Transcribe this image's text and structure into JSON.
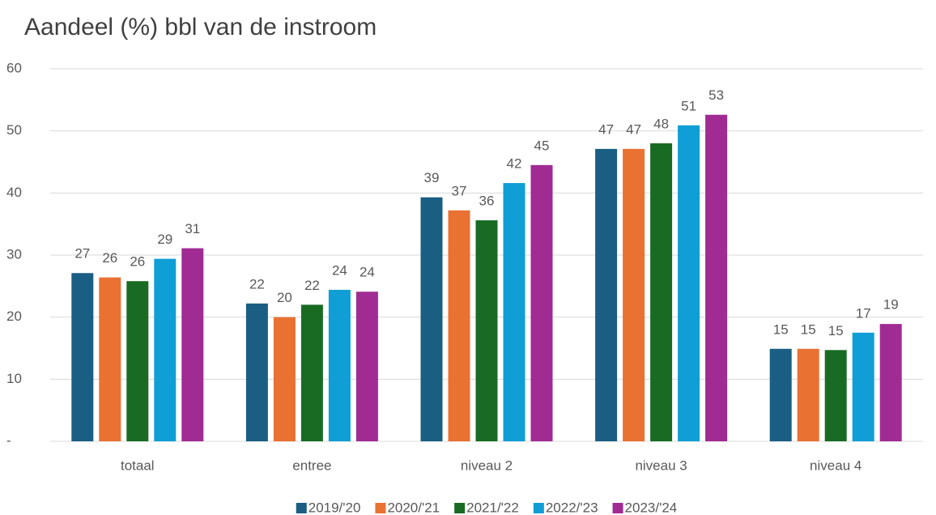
{
  "chart_data": {
    "type": "bar",
    "title": "Aandeel (%) bbl van de instroom",
    "categories": [
      "totaal",
      "entree",
      "niveau 2",
      "niveau 3",
      "niveau 4"
    ],
    "series": [
      {
        "name": "2019/'20",
        "color": "#1a5e83",
        "values": [
          27.1,
          22.2,
          39.3,
          47.1,
          14.9
        ],
        "value_labels": [
          "27",
          "22",
          "39",
          "47",
          "15"
        ]
      },
      {
        "name": "2020/'21",
        "color": "#e97132",
        "values": [
          26.4,
          20.0,
          37.2,
          47.1,
          14.9
        ],
        "value_labels": [
          "26",
          "20",
          "37",
          "47",
          "15"
        ]
      },
      {
        "name": "2021/'22",
        "color": "#196b24",
        "values": [
          25.8,
          22.0,
          35.6,
          48.0,
          14.7
        ],
        "value_labels": [
          "26",
          "22",
          "36",
          "48",
          "15"
        ]
      },
      {
        "name": "2022/'23",
        "color": "#0f9ed5",
        "values": [
          29.4,
          24.4,
          41.6,
          50.9,
          17.5
        ],
        "value_labels": [
          "29",
          "24",
          "42",
          "51",
          "17"
        ]
      },
      {
        "name": "2023/'24",
        "color": "#a02b93",
        "values": [
          31.1,
          24.1,
          44.5,
          52.6,
          18.9
        ],
        "value_labels": [
          "31",
          "24",
          "45",
          "53",
          "19"
        ]
      }
    ],
    "ylim": [
      0,
      60
    ],
    "yticks": [
      {
        "value": 0,
        "label": "-"
      },
      10,
      20,
      30,
      40,
      50,
      60
    ],
    "grid": true,
    "legend": "bottom"
  }
}
